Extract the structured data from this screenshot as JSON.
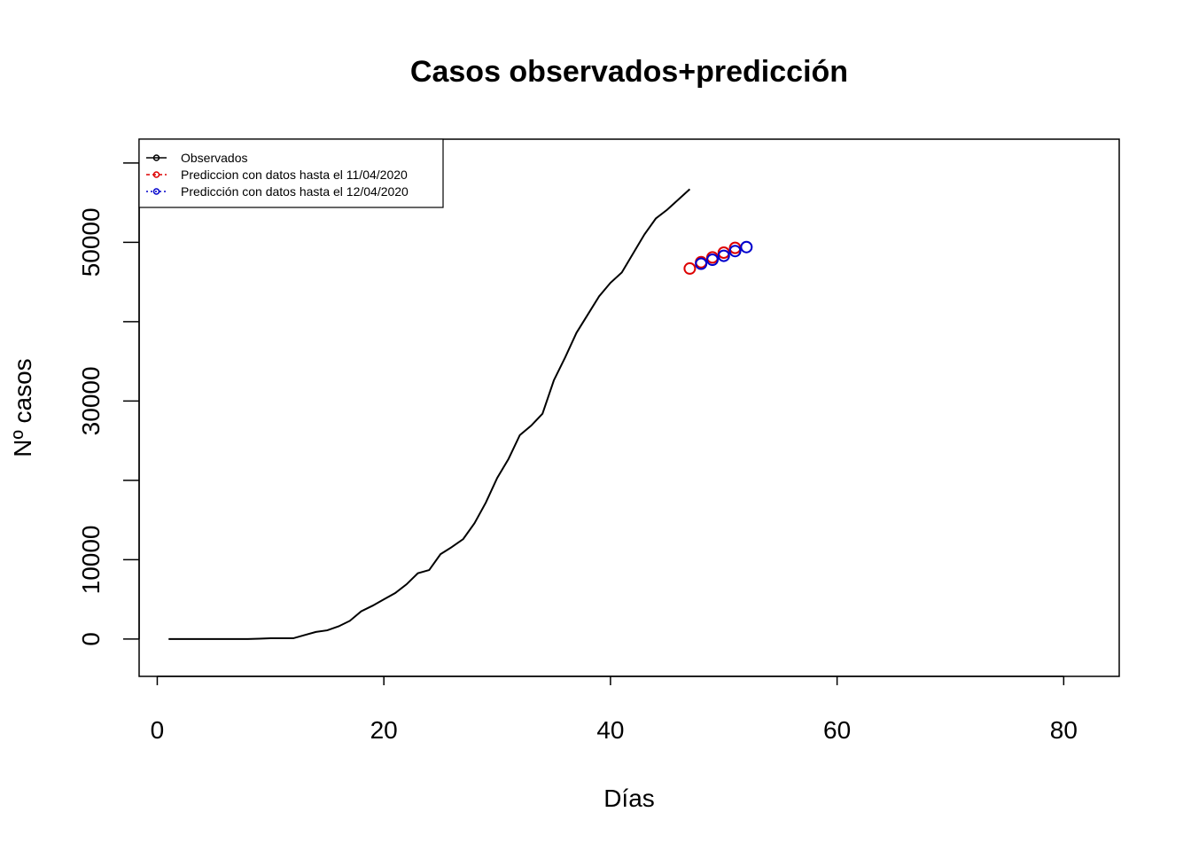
{
  "chart_data": {
    "type": "line",
    "title": "Casos observados+predicción",
    "xlabel": "Días",
    "ylabel": "Nº casos",
    "xlim": [
      -1.6,
      84.9
    ],
    "ylim": [
      -4700,
      63000
    ],
    "x_ticks": [
      0,
      20,
      40,
      60,
      80
    ],
    "y_ticks": [
      0,
      10000,
      20000,
      30000,
      40000,
      50000,
      60000
    ],
    "y_tick_labels": [
      "0",
      "",
      "10000",
      "",
      "30000",
      "",
      "50000",
      ""
    ],
    "y_tick_labels_shown": [
      "0",
      "10000",
      "30000",
      "50000"
    ],
    "grid": false,
    "legend": {
      "position": "top-left",
      "entries": [
        "Observados",
        "Prediccion con datos hasta el 11/04/2020",
        "Predicción con datos hasta el 12/04/2020"
      ]
    },
    "series": [
      {
        "name": "Observados",
        "color": "#000000",
        "style": "line",
        "x": [
          1,
          2,
          3,
          4,
          5,
          6,
          7,
          8,
          9,
          10,
          11,
          12,
          13,
          14,
          15,
          16,
          17,
          18,
          19,
          20,
          21,
          22,
          23,
          24,
          25,
          26,
          27,
          28,
          29,
          30,
          31,
          32,
          33,
          34,
          35,
          36,
          37,
          38,
          39,
          40,
          41,
          42,
          43,
          44,
          45,
          46,
          47
        ],
        "y": [
          0,
          0,
          0,
          0,
          0,
          0,
          0,
          0,
          50,
          100,
          100,
          100,
          500,
          900,
          1100,
          1600,
          2300,
          3500,
          4200,
          5000,
          5800,
          6900,
          8300,
          8700,
          10700,
          11600,
          12600,
          14600,
          17200,
          20300,
          22700,
          25700,
          26900,
          28400,
          32600,
          35500,
          38600,
          40900,
          43200,
          44900,
          46200,
          48600,
          51000,
          53000,
          54100,
          55400,
          56700
        ]
      },
      {
        "name": "Prediccion con datos hasta el 11/04/2020",
        "color": "#dd0000",
        "style": "points",
        "x": [
          47,
          48,
          49,
          50,
          51
        ],
        "y": [
          46700,
          47500,
          48100,
          48700,
          49300
        ]
      },
      {
        "name": "Predicción con datos hasta el 12/04/2020",
        "color": "#0000cc",
        "style": "points",
        "x": [
          48,
          49,
          50,
          51,
          52
        ],
        "y": [
          47300,
          47800,
          48300,
          48900,
          49400
        ]
      }
    ]
  }
}
